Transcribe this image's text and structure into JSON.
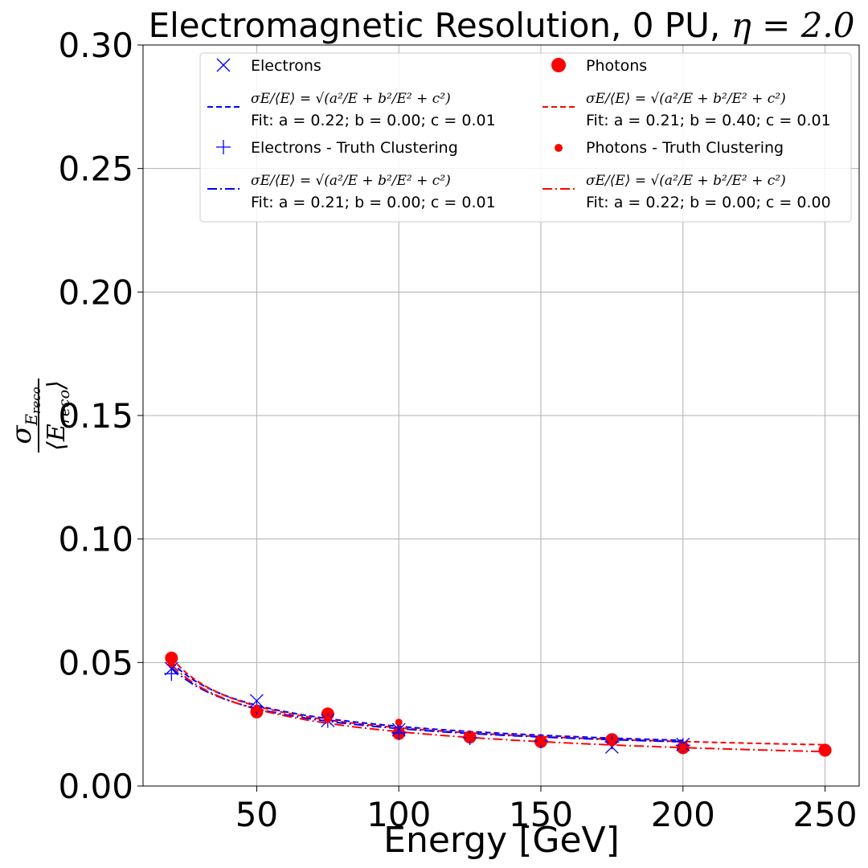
{
  "chart_data": {
    "type": "scatter",
    "title_prefix": "Electromagnetic Resolution, 0 PU, ",
    "title_eta": "η = 2.0",
    "xlabel": "Energy [GeV]",
    "ylabel_numerator": "σ",
    "ylabel_numerator_sub": "E",
    "ylabel_numerator_subsub": "reco",
    "ylabel_denominator": "⟨E",
    "ylabel_denominator_sub": "reco",
    "ylabel_denominator_close": "⟩",
    "xlim": [
      10,
      262
    ],
    "ylim": [
      0.0,
      0.3
    ],
    "x_ticks": [
      {
        "v": 50,
        "label": "50"
      },
      {
        "v": 100,
        "label": "100"
      },
      {
        "v": 150,
        "label": "150"
      },
      {
        "v": 200,
        "label": "200"
      },
      {
        "v": 250,
        "label": "250"
      }
    ],
    "y_ticks": [
      {
        "v": 0.0,
        "label": "0.00"
      },
      {
        "v": 0.05,
        "label": "0.05"
      },
      {
        "v": 0.1,
        "label": "0.10"
      },
      {
        "v": 0.15,
        "label": "0.15"
      },
      {
        "v": 0.2,
        "label": "0.20"
      },
      {
        "v": 0.25,
        "label": "0.25"
      },
      {
        "v": 0.3,
        "label": "0.30"
      }
    ],
    "grid": true,
    "legend_position": "top",
    "colors": {
      "electrons": "#0000ff",
      "photons": "#ff0000",
      "grid": "#b0b0b0"
    },
    "formula": "σE/⟨E⟩ = √(a²/E + b²/E² + c²)",
    "series": [
      {
        "name": "Electrons",
        "kind": "points",
        "marker": "x",
        "color": "#0000ff",
        "x": [
          20,
          50,
          75,
          100,
          175,
          200
        ],
        "y": [
          0.0475,
          0.0345,
          0.0265,
          0.0228,
          0.0158,
          0.0168
        ]
      },
      {
        "name": "Electrons - Truth Clustering",
        "kind": "points",
        "marker": "+",
        "color": "#0000ff",
        "x": [
          20,
          50,
          75,
          100,
          125,
          150,
          175,
          200
        ],
        "y": [
          0.0455,
          0.0318,
          0.0265,
          0.0215,
          0.0195,
          0.0182,
          0.0178,
          0.0165
        ]
      },
      {
        "name": "Photons",
        "kind": "points",
        "marker": "circle",
        "color": "#ff0000",
        "x": [
          20,
          50,
          75,
          100,
          125,
          150,
          175,
          200,
          250
        ],
        "y": [
          0.0518,
          0.03,
          0.0292,
          0.0213,
          0.0198,
          0.018,
          0.0188,
          0.0155,
          0.0145
        ]
      },
      {
        "name": "Photons - Truth Clustering",
        "kind": "points",
        "marker": "dot",
        "color": "#ff0000",
        "x": [
          20,
          50,
          75,
          100,
          125,
          150,
          175,
          200,
          250
        ],
        "y": [
          0.0495,
          0.0315,
          0.027,
          0.0258,
          0.0198,
          0.0182,
          0.0175,
          0.0158,
          0.0145
        ]
      },
      {
        "name": "",
        "fit_label": "Fit: a = 0.22; b = 0.00; c = 0.01",
        "kind": "fit",
        "dash": "dashed",
        "color": "#0000ff",
        "a": 0.22,
        "b": 0.0,
        "c": 0.01,
        "xrange": [
          20,
          200
        ]
      },
      {
        "name": "",
        "fit_label": "Fit: a = 0.21; b = 0.40; c = 0.01",
        "kind": "fit",
        "dash": "dashed",
        "color": "#ff0000",
        "a": 0.21,
        "b": 0.4,
        "c": 0.01,
        "xrange": [
          20,
          250
        ]
      },
      {
        "name": "",
        "fit_label": "Fit: a = 0.21; b = 0.00; c = 0.01",
        "kind": "fit",
        "dash": "dashdot",
        "color": "#0000ff",
        "a": 0.21,
        "b": 0.0,
        "c": 0.01,
        "xrange": [
          20,
          200
        ]
      },
      {
        "name": "",
        "fit_label": "Fit: a = 0.22; b = 0.00; c = 0.00",
        "kind": "fit",
        "dash": "dashdot",
        "color": "#ff0000",
        "a": 0.22,
        "b": 0.0,
        "c": 0.0,
        "xrange": [
          20,
          250
        ]
      }
    ],
    "legend": [
      {
        "type": "marker",
        "marker": "x",
        "color": "#0000ff",
        "label": "Electrons"
      },
      {
        "type": "marker",
        "marker": "circle",
        "color": "#ff0000",
        "label": "Photons"
      },
      {
        "type": "fit",
        "dash": "dashed",
        "color": "#0000ff",
        "label": "Fit: a = 0.22; b = 0.00; c = 0.01"
      },
      {
        "type": "fit",
        "dash": "dashed",
        "color": "#ff0000",
        "label": "Fit: a = 0.21; b = 0.40; c = 0.01"
      },
      {
        "type": "marker",
        "marker": "+",
        "color": "#0000ff",
        "label": "Electrons - Truth Clustering"
      },
      {
        "type": "marker",
        "marker": "dot",
        "color": "#ff0000",
        "label": "Photons - Truth Clustering"
      },
      {
        "type": "fit",
        "dash": "dashdot",
        "color": "#0000ff",
        "label": "Fit: a = 0.21; b = 0.00; c = 0.01"
      },
      {
        "type": "fit",
        "dash": "dashdot",
        "color": "#ff0000",
        "label": "Fit: a = 0.22; b = 0.00; c = 0.00"
      }
    ]
  }
}
